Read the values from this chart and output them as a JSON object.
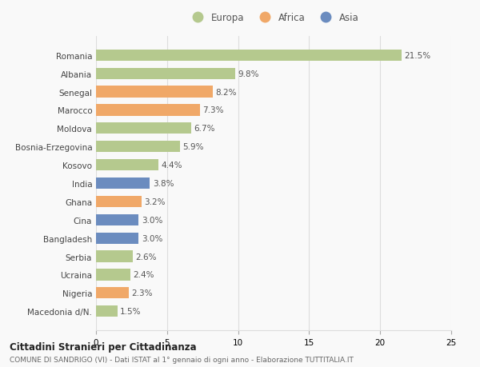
{
  "categories": [
    "Romania",
    "Albania",
    "Senegal",
    "Marocco",
    "Moldova",
    "Bosnia-Erzegovina",
    "Kosovo",
    "India",
    "Ghana",
    "Cina",
    "Bangladesh",
    "Serbia",
    "Ucraina",
    "Nigeria",
    "Macedonia d/N."
  ],
  "values": [
    21.5,
    9.8,
    8.2,
    7.3,
    6.7,
    5.9,
    4.4,
    3.8,
    3.2,
    3.0,
    3.0,
    2.6,
    2.4,
    2.3,
    1.5
  ],
  "continent": [
    "Europa",
    "Europa",
    "Africa",
    "Africa",
    "Europa",
    "Europa",
    "Europa",
    "Asia",
    "Africa",
    "Asia",
    "Asia",
    "Europa",
    "Europa",
    "Africa",
    "Europa"
  ],
  "colors": {
    "Europa": "#b5c98e",
    "Africa": "#f0a868",
    "Asia": "#6b8cbf"
  },
  "legend_labels": [
    "Europa",
    "Africa",
    "Asia"
  ],
  "legend_colors": [
    "#b5c98e",
    "#f0a868",
    "#6b8cbf"
  ],
  "xlim": [
    0,
    25
  ],
  "xticks": [
    0,
    5,
    10,
    15,
    20,
    25
  ],
  "title": "Cittadini Stranieri per Cittadinanza",
  "subtitle": "COMUNE DI SANDRIGO (VI) - Dati ISTAT al 1° gennaio di ogni anno - Elaborazione TUTTITALIA.IT",
  "background_color": "#f9f9f9",
  "grid_color": "#dddddd",
  "bar_height": 0.62,
  "label_fontsize": 7.5,
  "value_fontsize": 7.5,
  "tick_fontsize": 7.5
}
